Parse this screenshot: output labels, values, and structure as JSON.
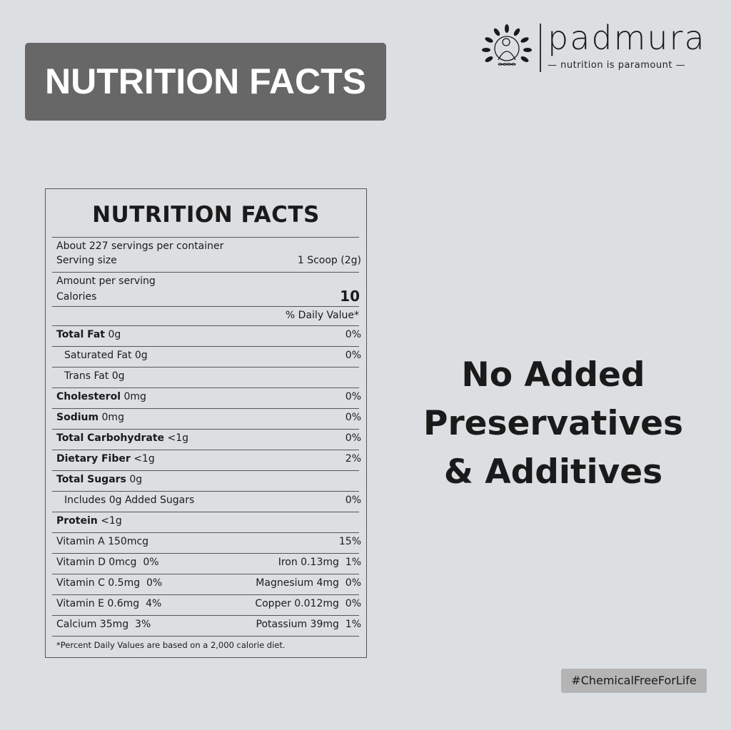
{
  "banner": {
    "title": "NUTRITION FACTS"
  },
  "logo": {
    "brand": "padmura",
    "tagline": "— nutrition is paramount —"
  },
  "label": {
    "title": "NUTRITION FACTS",
    "servings": "About 227 servings per container",
    "serving_size_label": "Serving size",
    "serving_size_value": "1 Scoop (2g)",
    "amount_per_serving": "Amount per serving",
    "calories_label": "Calories",
    "calories_value": "10",
    "daily_value_header": "% Daily Value*",
    "rows": [
      {
        "bold": "Total Fat",
        "text": " 0g",
        "dv": "0%",
        "indent": false
      },
      {
        "bold": "",
        "text": "Saturated Fat 0g",
        "dv": "0%",
        "indent": true
      },
      {
        "bold": "",
        "text": "Trans Fat 0g",
        "dv": "",
        "indent": true
      },
      {
        "bold": "Cholesterol",
        "text": " 0mg",
        "dv": "0%",
        "indent": false
      },
      {
        "bold": "Sodium",
        "text": " 0mg",
        "dv": "0%",
        "indent": false
      },
      {
        "bold": "Total Carbohydrate",
        "text": " <1g",
        "dv": "0%",
        "indent": false
      },
      {
        "bold": "Dietary Fiber",
        "text": " <1g",
        "dv": "2%",
        "indent": false
      },
      {
        "bold": "Total Sugars",
        "text": " 0g",
        "dv": "",
        "indent": false
      },
      {
        "bold": "",
        "text": "Includes 0g Added Sugars",
        "dv": "0%",
        "indent": true
      },
      {
        "bold": "Protein",
        "text": " <1g",
        "dv": "",
        "indent": false
      },
      {
        "bold": "",
        "text": "Vitamin A 150mcg",
        "dv": "15%",
        "indent": false
      },
      {
        "bold": "",
        "text": "Vitamin D 0mcg  0%",
        "dv": "Iron 0.13mg  1%",
        "indent": false
      },
      {
        "bold": "",
        "text": "Vitamin C 0.5mg  0%",
        "dv": "Magnesium 4mg  0%",
        "indent": false
      },
      {
        "bold": "",
        "text": "Vitamin E 0.6mg  4%",
        "dv": "Copper 0.012mg  0%",
        "indent": false
      },
      {
        "bold": "",
        "text": "Calcium 35mg  3%",
        "dv": "Potassium 39mg  1%",
        "indent": false
      }
    ],
    "footnote": "*Percent Daily Values are based on a 2,000 calorie diet."
  },
  "claim": {
    "line1": "No Added",
    "line2": "Preservatives",
    "line3": "& Additives"
  },
  "hashtag": "#ChemicalFreeForLife",
  "colors": {
    "background": "#dcdfe2",
    "banner": "#676767",
    "hashtag_bg": "#b4b4b4"
  }
}
